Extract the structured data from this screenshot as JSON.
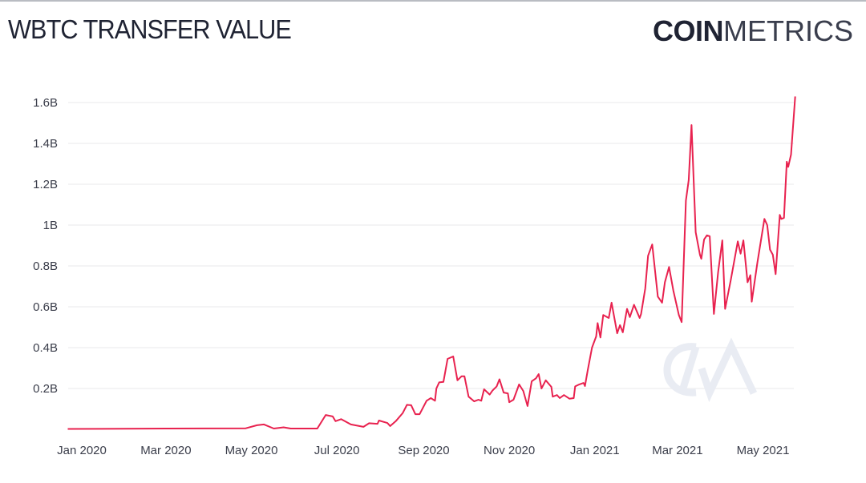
{
  "header": {
    "title": "WBTC TRANSFER VALUE",
    "logo_bold": "COIN",
    "logo_light": "METRICS",
    "watermark": "CM"
  },
  "colors": {
    "line": "#e8224f",
    "grid": "#f0f0f2",
    "text": "#1f2333",
    "watermark": "#e9ecf3"
  },
  "chart_data": {
    "type": "line",
    "title": "WBTC TRANSFER VALUE",
    "xlabel": "",
    "ylabel": "",
    "x_unit": "days since 2020-01-01",
    "y_unit": "USD billions",
    "ylim": [
      0,
      1.6
    ],
    "xlim": [
      -10,
      509
    ],
    "grid": true,
    "yticks": [
      {
        "value": 0.2,
        "label": "0.2B"
      },
      {
        "value": 0.4,
        "label": "0.4B"
      },
      {
        "value": 0.6,
        "label": "0.6B"
      },
      {
        "value": 0.8,
        "label": "0.8B"
      },
      {
        "value": 1.0,
        "label": "1B"
      },
      {
        "value": 1.2,
        "label": "1.2B"
      },
      {
        "value": 1.4,
        "label": "1.4B"
      },
      {
        "value": 1.6,
        "label": "1.6B"
      }
    ],
    "xticks": [
      {
        "value": 0,
        "label": "Jan 2020"
      },
      {
        "value": 60,
        "label": "Mar 2020"
      },
      {
        "value": 121,
        "label": "May 2020"
      },
      {
        "value": 182,
        "label": "Jul 2020"
      },
      {
        "value": 244,
        "label": "Sep 2020"
      },
      {
        "value": 305,
        "label": "Nov 2020"
      },
      {
        "value": 366,
        "label": "Jan 2021"
      },
      {
        "value": 425,
        "label": "Mar 2021"
      },
      {
        "value": 486,
        "label": "May 2021"
      }
    ],
    "series": [
      {
        "name": "WBTC Transfer Value",
        "x": [
          -10,
          60,
          117,
          125,
          130,
          137,
          144,
          149,
          168,
          174,
          179,
          181,
          185,
          192,
          201,
          205,
          211,
          212,
          218,
          220,
          224,
          229,
          232,
          235,
          238,
          241,
          246,
          249,
          252,
          253,
          255,
          258,
          261,
          265,
          268,
          271,
          273,
          276,
          280,
          283,
          285,
          287,
          291,
          293,
          296,
          298,
          301,
          304,
          305,
          308,
          312,
          315,
          318,
          321,
          324,
          326,
          328,
          331,
          335,
          336,
          339,
          341,
          344,
          348,
          351,
          352,
          355,
          358,
          359,
          361,
          364,
          367,
          368,
          370,
          372,
          376,
          378,
          382,
          384,
          386,
          389,
          391,
          394,
          398,
          399,
          402,
          404,
          407,
          411,
          414,
          416,
          419,
          422,
          426,
          428,
          431,
          433,
          435,
          438,
          441,
          442,
          444,
          446,
          448,
          451,
          454,
          457,
          459,
          463,
          468,
          470,
          472,
          475,
          477,
          478,
          482,
          487,
          489,
          491,
          493,
          495,
          498,
          499,
          501,
          503,
          504,
          506,
          509
        ],
        "y": [
          0.002,
          0.004,
          0.005,
          0.02,
          0.024,
          0.004,
          0.01,
          0.004,
          0.004,
          0.07,
          0.063,
          0.04,
          0.05,
          0.024,
          0.012,
          0.03,
          0.027,
          0.043,
          0.031,
          0.016,
          0.04,
          0.08,
          0.12,
          0.118,
          0.074,
          0.074,
          0.14,
          0.153,
          0.14,
          0.2,
          0.23,
          0.232,
          0.345,
          0.357,
          0.24,
          0.26,
          0.26,
          0.16,
          0.137,
          0.145,
          0.14,
          0.196,
          0.17,
          0.19,
          0.21,
          0.245,
          0.18,
          0.176,
          0.133,
          0.145,
          0.22,
          0.188,
          0.114,
          0.235,
          0.25,
          0.27,
          0.2,
          0.24,
          0.208,
          0.16,
          0.168,
          0.153,
          0.168,
          0.15,
          0.153,
          0.21,
          0.22,
          0.227,
          0.212,
          0.29,
          0.4,
          0.455,
          0.52,
          0.45,
          0.56,
          0.545,
          0.62,
          0.47,
          0.51,
          0.475,
          0.59,
          0.55,
          0.61,
          0.545,
          0.565,
          0.69,
          0.85,
          0.905,
          0.65,
          0.62,
          0.72,
          0.795,
          0.68,
          0.56,
          0.525,
          1.12,
          1.22,
          1.49,
          0.965,
          0.855,
          0.835,
          0.93,
          0.95,
          0.945,
          0.565,
          0.77,
          0.925,
          0.59,
          0.73,
          0.92,
          0.86,
          0.925,
          0.72,
          0.755,
          0.625,
          0.815,
          1.03,
          1.0,
          0.88,
          0.855,
          0.76,
          1.05,
          1.03,
          1.035,
          1.31,
          1.285,
          1.345,
          1.63
        ]
      }
    ]
  }
}
